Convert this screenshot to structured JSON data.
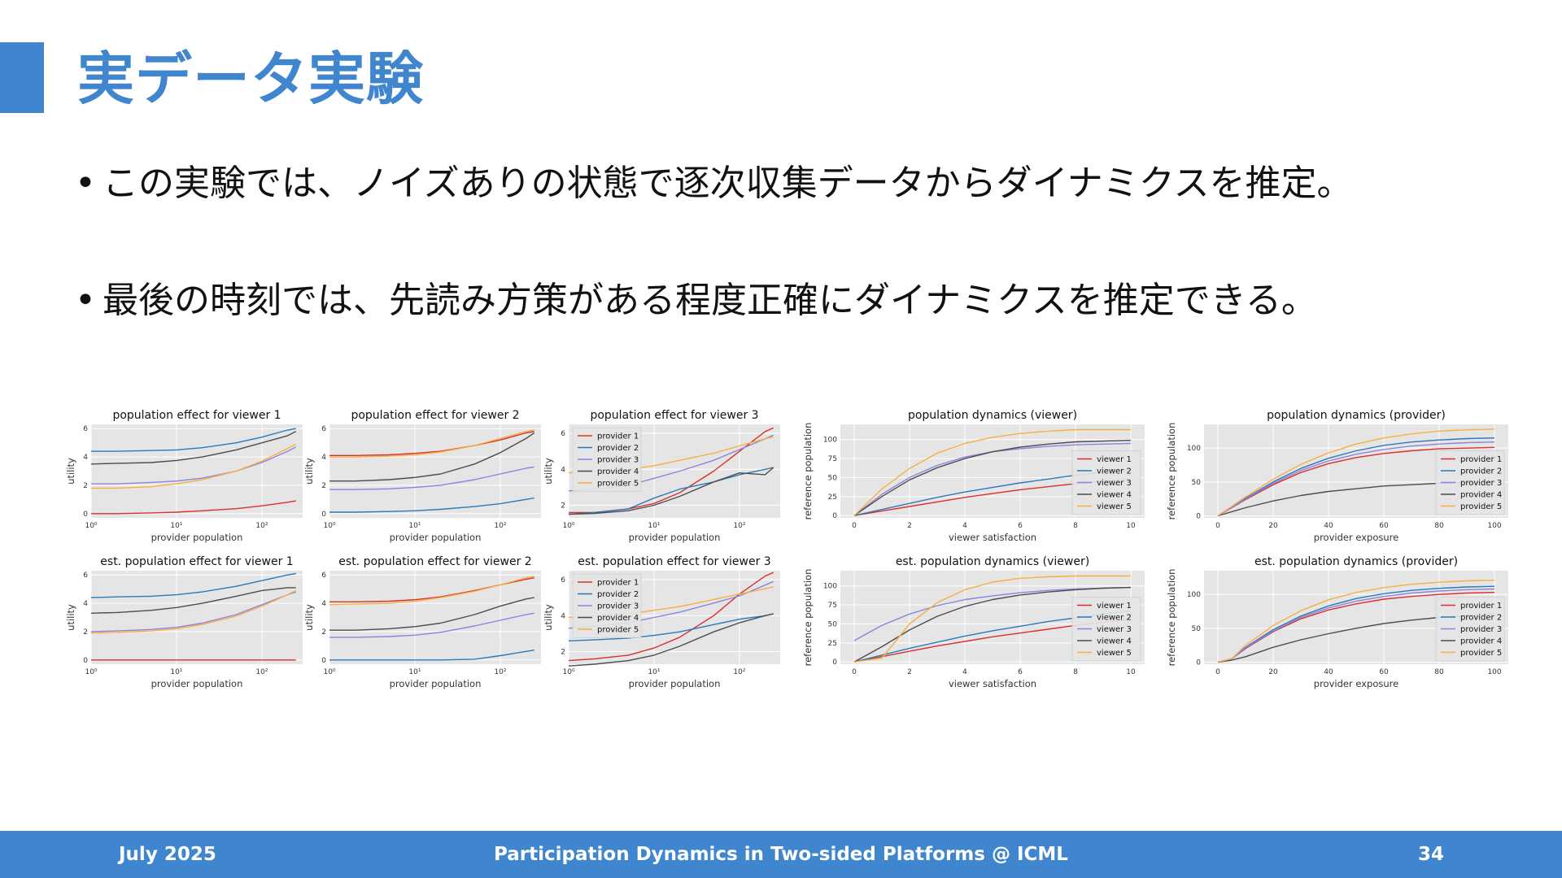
{
  "slide": {
    "title": "実データ実験",
    "bullets": [
      "この実験では、ノイズありの状態で逐次収集データからダイナミクスを推定。",
      "最後の時刻では、先読み方策がある程度正確にダイナミクスを推定できる。"
    ]
  },
  "footer": {
    "date": "July 2025",
    "center": "Participation Dynamics in Two-sided Platforms @ ICML",
    "page": "34"
  },
  "colors": {
    "accent": "#3f86cf",
    "plot_bg": "#e5e5e5",
    "line1": "#d9302b",
    "line2": "#2a7ab8",
    "line3": "#8a84e0",
    "line4": "#4d4d4d",
    "line5": "#f5b041"
  },
  "chart_data": [
    {
      "type": "line",
      "title": "population effect for viewer 1",
      "xlabel": "provider population",
      "ylabel": "utility",
      "xscale": "log",
      "xlim": [
        1,
        300
      ],
      "ylim": [
        -0.3,
        6.3
      ],
      "xticks": [
        1,
        10,
        100
      ],
      "xticklabels": [
        "10⁰",
        "10¹",
        "10²"
      ],
      "yticks": [
        0,
        2,
        4,
        6
      ],
      "x": [
        1,
        2,
        5,
        10,
        20,
        50,
        100,
        200,
        250
      ],
      "series": [
        {
          "values": [
            0.0,
            0.0,
            0.05,
            0.1,
            0.2,
            0.35,
            0.55,
            0.8,
            0.9
          ]
        },
        {
          "values": [
            4.4,
            4.4,
            4.45,
            4.5,
            4.65,
            5.0,
            5.4,
            5.9,
            6.0
          ]
        },
        {
          "values": [
            2.1,
            2.1,
            2.2,
            2.3,
            2.5,
            3.0,
            3.6,
            4.4,
            4.7
          ]
        },
        {
          "values": [
            3.5,
            3.55,
            3.6,
            3.75,
            4.0,
            4.5,
            5.0,
            5.5,
            5.8
          ]
        },
        {
          "values": [
            1.8,
            1.8,
            1.9,
            2.1,
            2.4,
            3.0,
            3.7,
            4.6,
            4.9
          ]
        }
      ]
    },
    {
      "type": "line",
      "title": "population effect for viewer 2",
      "xlabel": "provider population",
      "ylabel": "utility",
      "xscale": "log",
      "xlim": [
        1,
        300
      ],
      "ylim": [
        -0.3,
        6.3
      ],
      "xticks": [
        1,
        10,
        100
      ],
      "xticklabels": [
        "10⁰",
        "10¹",
        "10²"
      ],
      "yticks": [
        0,
        2,
        4,
        6
      ],
      "x": [
        1,
        2,
        5,
        10,
        20,
        50,
        100,
        200,
        250
      ],
      "series": [
        {
          "values": [
            4.1,
            4.1,
            4.15,
            4.25,
            4.4,
            4.8,
            5.2,
            5.7,
            5.8
          ]
        },
        {
          "values": [
            0.1,
            0.1,
            0.15,
            0.2,
            0.3,
            0.5,
            0.7,
            1.0,
            1.1
          ]
        },
        {
          "values": [
            1.7,
            1.7,
            1.75,
            1.85,
            2.0,
            2.4,
            2.8,
            3.2,
            3.3
          ]
        },
        {
          "values": [
            2.3,
            2.3,
            2.4,
            2.55,
            2.8,
            3.5,
            4.3,
            5.3,
            5.7
          ]
        },
        {
          "values": [
            4.0,
            4.0,
            4.05,
            4.15,
            4.35,
            4.8,
            5.3,
            5.8,
            5.9
          ]
        }
      ]
    },
    {
      "type": "line",
      "title": "population effect for viewer 3",
      "xlabel": "provider population",
      "ylabel": "utility",
      "xscale": "log",
      "xlim": [
        1,
        300
      ],
      "ylim": [
        1.3,
        6.5
      ],
      "xticks": [
        1,
        10,
        100
      ],
      "xticklabels": [
        "10⁰",
        "10¹",
        "10²"
      ],
      "yticks": [
        2,
        4,
        6
      ],
      "legend": [
        "provider 1",
        "provider 2",
        "provider 3",
        "provider 4",
        "provider 5"
      ],
      "legend_loc": "upper left",
      "x": [
        1,
        2,
        5,
        10,
        20,
        50,
        100,
        200,
        250
      ],
      "series": [
        {
          "values": [
            1.6,
            1.6,
            1.8,
            2.1,
            2.7,
            3.9,
            5.0,
            6.1,
            6.3
          ]
        },
        {
          "values": [
            1.5,
            1.6,
            1.8,
            2.4,
            2.9,
            3.3,
            3.7,
            4.0,
            4.1
          ]
        },
        {
          "values": [
            2.8,
            2.9,
            3.1,
            3.5,
            3.9,
            4.5,
            5.1,
            5.7,
            5.9
          ]
        },
        {
          "values": [
            1.5,
            1.55,
            1.7,
            2.0,
            2.5,
            3.3,
            3.8,
            3.7,
            4.1
          ]
        },
        {
          "values": [
            3.8,
            3.9,
            4.0,
            4.2,
            4.5,
            4.9,
            5.3,
            5.7,
            5.8
          ]
        }
      ]
    },
    {
      "type": "line",
      "title": "population dynamics (viewer)",
      "xlabel": "viewer satisfaction",
      "ylabel": "reference population",
      "xscale": "linear",
      "xlim": [
        -0.5,
        10.5
      ],
      "ylim": [
        -3,
        120
      ],
      "xticks": [
        0,
        2,
        4,
        6,
        8,
        10
      ],
      "yticks": [
        0,
        25,
        50,
        75,
        100
      ],
      "legend": [
        "viewer 1",
        "viewer 2",
        "viewer 3",
        "viewer 4",
        "viewer 5"
      ],
      "legend_loc": "lower right",
      "x": [
        0,
        1,
        2,
        3,
        4,
        5,
        6,
        7,
        8,
        9,
        10
      ],
      "series": [
        {
          "values": [
            0,
            6,
            12,
            18,
            24,
            29,
            34,
            38,
            42,
            45,
            48
          ]
        },
        {
          "values": [
            0,
            8,
            16,
            24,
            31,
            37,
            43,
            48,
            53,
            57,
            60
          ]
        },
        {
          "values": [
            0,
            28,
            50,
            66,
            77,
            84,
            88,
            91,
            93,
            94,
            95
          ]
        },
        {
          "values": [
            0,
            25,
            47,
            63,
            75,
            84,
            90,
            94,
            97,
            98,
            99
          ]
        },
        {
          "values": [
            0,
            35,
            62,
            82,
            95,
            103,
            108,
            111,
            113,
            113,
            113
          ]
        }
      ]
    },
    {
      "type": "line",
      "title": "population dynamics (provider)",
      "xlabel": "provider exposure",
      "ylabel": "reference population",
      "xscale": "linear",
      "xlim": [
        -5,
        105
      ],
      "ylim": [
        -3,
        135
      ],
      "xticks": [
        0,
        20,
        40,
        60,
        80,
        100
      ],
      "yticks": [
        0,
        50,
        100
      ],
      "legend": [
        "provider 1",
        "provider 2",
        "provider 3",
        "provider 4",
        "provider 5"
      ],
      "legend_loc": "lower right",
      "x": [
        0,
        10,
        20,
        30,
        40,
        50,
        60,
        70,
        80,
        90,
        100
      ],
      "series": [
        {
          "values": [
            0,
            24,
            46,
            64,
            77,
            86,
            92,
            96,
            99,
            100,
            101
          ]
        },
        {
          "values": [
            0,
            26,
            50,
            70,
            85,
            96,
            104,
            109,
            112,
            114,
            115
          ]
        },
        {
          "values": [
            0,
            25,
            48,
            67,
            81,
            91,
            98,
            103,
            106,
            108,
            109
          ]
        },
        {
          "values": [
            0,
            12,
            22,
            30,
            36,
            40,
            44,
            46,
            48,
            49,
            50
          ]
        },
        {
          "values": [
            0,
            28,
            54,
            76,
            93,
            106,
            115,
            121,
            125,
            127,
            128
          ]
        }
      ]
    },
    {
      "type": "line",
      "title": "est. population effect for viewer 1",
      "xlabel": "provider population",
      "ylabel": "utility",
      "xscale": "log",
      "xlim": [
        1,
        300
      ],
      "ylim": [
        -0.3,
        6.3
      ],
      "xticks": [
        1,
        10,
        100
      ],
      "xticklabels": [
        "10⁰",
        "10¹",
        "10²"
      ],
      "yticks": [
        0,
        2,
        4,
        6
      ],
      "x": [
        1,
        2,
        5,
        10,
        20,
        50,
        100,
        200,
        250
      ],
      "series": [
        {
          "values": [
            0.0,
            0.0,
            0.0,
            0.0,
            0.0,
            0.0,
            0.0,
            0.0,
            0.0
          ]
        },
        {
          "values": [
            4.4,
            4.45,
            4.5,
            4.6,
            4.8,
            5.2,
            5.6,
            6.0,
            6.1
          ]
        },
        {
          "values": [
            2.0,
            2.05,
            2.15,
            2.3,
            2.6,
            3.2,
            3.9,
            4.6,
            4.8
          ]
        },
        {
          "values": [
            3.3,
            3.35,
            3.5,
            3.7,
            4.0,
            4.5,
            4.9,
            5.1,
            5.1
          ]
        },
        {
          "values": [
            1.9,
            1.95,
            2.05,
            2.2,
            2.5,
            3.1,
            3.8,
            4.6,
            4.9
          ]
        }
      ]
    },
    {
      "type": "line",
      "title": "est. population effect for viewer 2",
      "xlabel": "provider population",
      "ylabel": "utility",
      "xscale": "log",
      "xlim": [
        1,
        300
      ],
      "ylim": [
        -0.3,
        6.3
      ],
      "xticks": [
        1,
        10,
        100
      ],
      "xticklabels": [
        "10⁰",
        "10¹",
        "10²"
      ],
      "yticks": [
        0,
        2,
        4,
        6
      ],
      "x": [
        1,
        2,
        5,
        10,
        20,
        50,
        100,
        200,
        250
      ],
      "series": [
        {
          "values": [
            4.1,
            4.1,
            4.15,
            4.25,
            4.45,
            4.9,
            5.3,
            5.7,
            5.8
          ]
        },
        {
          "values": [
            0.0,
            0.0,
            0.0,
            0.0,
            0.0,
            0.05,
            0.3,
            0.6,
            0.7
          ]
        },
        {
          "values": [
            1.6,
            1.6,
            1.65,
            1.75,
            1.95,
            2.4,
            2.8,
            3.2,
            3.3
          ]
        },
        {
          "values": [
            2.1,
            2.1,
            2.2,
            2.35,
            2.6,
            3.2,
            3.8,
            4.3,
            4.4
          ]
        },
        {
          "values": [
            3.9,
            3.95,
            4.0,
            4.15,
            4.4,
            4.85,
            5.3,
            5.8,
            5.9
          ]
        }
      ]
    },
    {
      "type": "line",
      "title": "est. population effect for viewer 3",
      "xlabel": "provider population",
      "ylabel": "utility",
      "xscale": "log",
      "xlim": [
        1,
        300
      ],
      "ylim": [
        1.3,
        6.5
      ],
      "xticks": [
        1,
        10,
        100
      ],
      "xticklabels": [
        "10⁰",
        "10¹",
        "10²"
      ],
      "yticks": [
        2,
        4,
        6
      ],
      "legend": [
        "provider 1",
        "provider 2",
        "provider 3",
        "provider 4",
        "provider 5"
      ],
      "legend_loc": "upper left",
      "x": [
        1,
        2,
        5,
        10,
        20,
        50,
        100,
        200,
        250
      ],
      "series": [
        {
          "values": [
            1.5,
            1.6,
            1.8,
            2.2,
            2.8,
            4.0,
            5.2,
            6.2,
            6.4
          ]
        },
        {
          "values": [
            2.6,
            2.65,
            2.75,
            2.9,
            3.1,
            3.5,
            3.8,
            4.0,
            4.1
          ]
        },
        {
          "values": [
            3.3,
            3.4,
            3.6,
            3.9,
            4.2,
            4.7,
            5.1,
            5.7,
            5.9
          ]
        },
        {
          "values": [
            1.2,
            1.3,
            1.5,
            1.8,
            2.3,
            3.1,
            3.6,
            4.0,
            4.1
          ]
        },
        {
          "values": [
            3.9,
            4.0,
            4.1,
            4.3,
            4.5,
            4.9,
            5.2,
            5.5,
            5.6
          ]
        }
      ]
    },
    {
      "type": "line",
      "title": "est. population dynamics (viewer)",
      "xlabel": "viewer satisfaction",
      "ylabel": "reference population",
      "xscale": "linear",
      "xlim": [
        -0.5,
        10.5
      ],
      "ylim": [
        -3,
        120
      ],
      "xticks": [
        0,
        2,
        4,
        6,
        8,
        10
      ],
      "yticks": [
        0,
        25,
        50,
        75,
        100
      ],
      "legend": [
        "viewer 1",
        "viewer 2",
        "viewer 3",
        "viewer 4",
        "viewer 5"
      ],
      "legend_loc": "lower right",
      "x": [
        0,
        1,
        2,
        3,
        4,
        5,
        6,
        7,
        8,
        9,
        10
      ],
      "series": [
        {
          "values": [
            0,
            7,
            14,
            21,
            27,
            33,
            38,
            43,
            48,
            52,
            56
          ]
        },
        {
          "values": [
            0,
            9,
            18,
            26,
            34,
            41,
            47,
            53,
            58,
            63,
            67
          ]
        },
        {
          "values": [
            28,
            48,
            63,
            74,
            82,
            87,
            91,
            94,
            96,
            97,
            98
          ]
        },
        {
          "values": [
            0,
            20,
            42,
            60,
            73,
            82,
            88,
            92,
            95,
            97,
            98
          ]
        },
        {
          "values": [
            0,
            5,
            50,
            78,
            95,
            105,
            110,
            112,
            113,
            113,
            113
          ]
        }
      ]
    },
    {
      "type": "line",
      "title": "est. population dynamics (provider)",
      "xlabel": "provider exposure",
      "ylabel": "reference population",
      "xscale": "linear",
      "xlim": [
        -5,
        105
      ],
      "ylim": [
        -3,
        135
      ],
      "xticks": [
        0,
        20,
        40,
        60,
        80,
        100
      ],
      "yticks": [
        0,
        50,
        100
      ],
      "legend": [
        "provider 1",
        "provider 2",
        "provider 3",
        "provider 4",
        "provider 5"
      ],
      "legend_loc": "lower right",
      "x": [
        0,
        5,
        10,
        20,
        30,
        40,
        50,
        60,
        70,
        80,
        90,
        100
      ],
      "series": [
        {
          "values": [
            0,
            5,
            20,
            45,
            64,
            77,
            86,
            93,
            97,
            100,
            102,
            103
          ]
        },
        {
          "values": [
            0,
            5,
            22,
            48,
            68,
            83,
            94,
            101,
            106,
            109,
            111,
            112
          ]
        },
        {
          "values": [
            0,
            5,
            21,
            46,
            66,
            80,
            90,
            97,
            102,
            105,
            107,
            108
          ]
        },
        {
          "values": [
            0,
            3,
            8,
            22,
            33,
            42,
            50,
            57,
            62,
            66,
            69,
            71
          ]
        },
        {
          "values": [
            0,
            5,
            25,
            54,
            76,
            92,
            103,
            110,
            115,
            118,
            120,
            121
          ]
        }
      ]
    }
  ]
}
